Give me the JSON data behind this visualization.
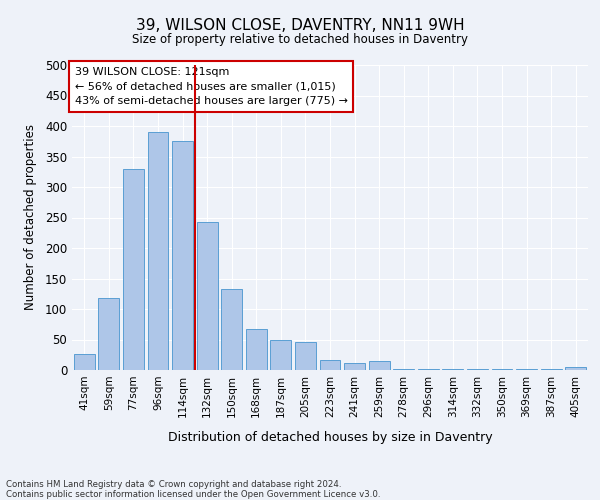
{
  "title": "39, WILSON CLOSE, DAVENTRY, NN11 9WH",
  "subtitle": "Size of property relative to detached houses in Daventry",
  "xlabel": "Distribution of detached houses by size in Daventry",
  "ylabel": "Number of detached properties",
  "bar_labels": [
    "41sqm",
    "59sqm",
    "77sqm",
    "96sqm",
    "114sqm",
    "132sqm",
    "150sqm",
    "168sqm",
    "187sqm",
    "205sqm",
    "223sqm",
    "241sqm",
    "259sqm",
    "278sqm",
    "296sqm",
    "314sqm",
    "332sqm",
    "350sqm",
    "369sqm",
    "387sqm",
    "405sqm"
  ],
  "bar_values": [
    27,
    118,
    330,
    390,
    375,
    242,
    133,
    68,
    50,
    46,
    17,
    12,
    14,
    1,
    1,
    1,
    1,
    1,
    1,
    1,
    5
  ],
  "bar_color": "#aec6e8",
  "bar_edge_color": "#5a9fd4",
  "vline_x": 4.5,
  "vline_color": "#cc0000",
  "annotation_title": "39 WILSON CLOSE: 121sqm",
  "annotation_line1": "← 56% of detached houses are smaller (1,015)",
  "annotation_line2": "43% of semi-detached houses are larger (775) →",
  "annotation_box_color": "#cc0000",
  "ylim": [
    0,
    500
  ],
  "yticks": [
    0,
    50,
    100,
    150,
    200,
    250,
    300,
    350,
    400,
    450,
    500
  ],
  "footer_line1": "Contains HM Land Registry data © Crown copyright and database right 2024.",
  "footer_line2": "Contains public sector information licensed under the Open Government Licence v3.0.",
  "bg_color": "#eef2f9",
  "grid_color": "#ffffff"
}
